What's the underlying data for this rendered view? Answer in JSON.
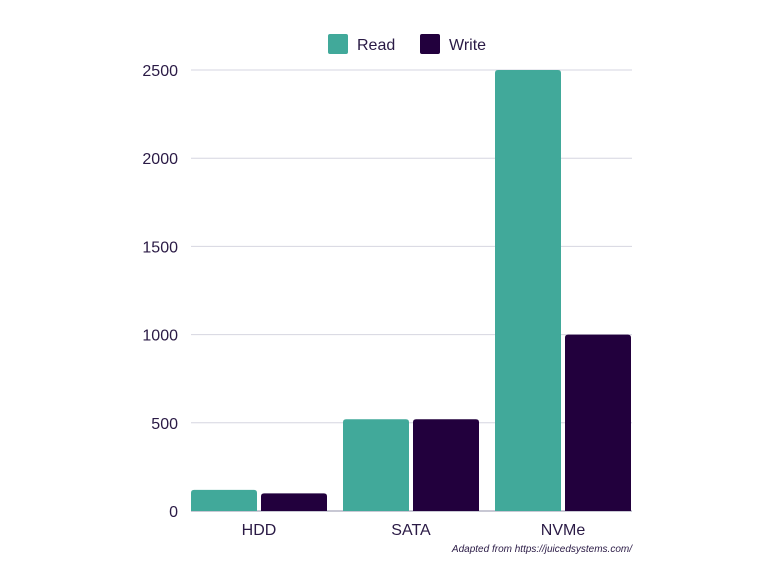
{
  "chart_data": {
    "type": "bar",
    "categories": [
      "HDD",
      "SATA",
      "NVMe"
    ],
    "series": [
      {
        "name": "Read",
        "values": [
          120,
          520,
          2500
        ],
        "color": "#41a99a"
      },
      {
        "name": "Write",
        "values": [
          100,
          520,
          1000
        ],
        "color": "#22003d"
      }
    ],
    "ylim": [
      0,
      2500
    ],
    "yticks": [
      0,
      500,
      1000,
      1500,
      2000,
      2500
    ],
    "grid": true,
    "legend": "top-center",
    "source": "Adapted from https://juicedsystems.com/"
  }
}
